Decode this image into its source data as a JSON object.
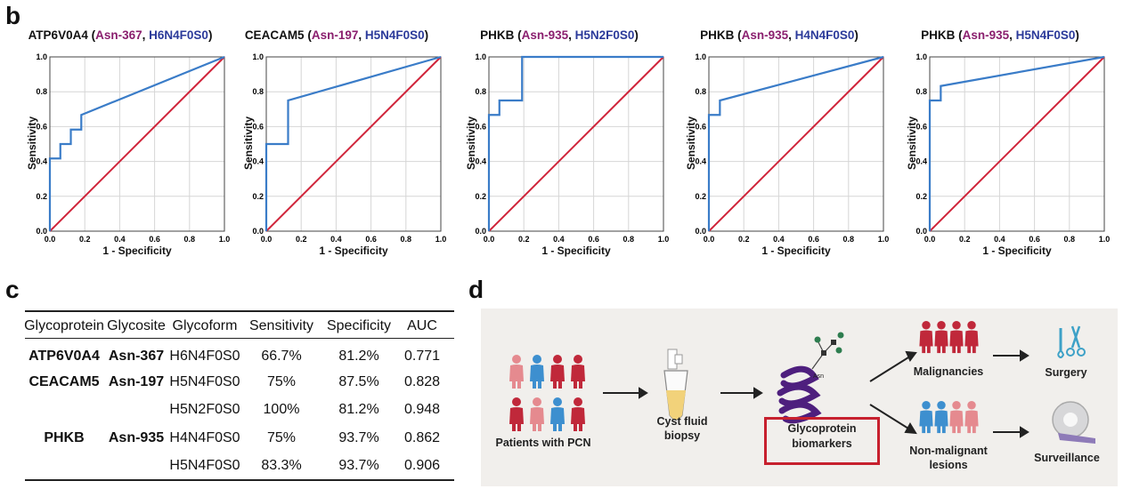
{
  "panels": {
    "b": "b",
    "c": "c",
    "d": "d"
  },
  "roc_common": {
    "ylabel": "Sensitivity",
    "xlabel": "1 - Specificity",
    "ticks": [
      "0.0",
      "0.2",
      "0.4",
      "0.6",
      "0.8",
      "1.0"
    ],
    "diagonal_color": "#d0243a",
    "curve_color": "#3a7cc8"
  },
  "chart_data": [
    {
      "type": "line",
      "title_protein": "ATP6V0A4",
      "title_open": " (",
      "title_site": "Asn-367",
      "title_sep": ", ",
      "title_form": "H6N4F0S0",
      "title_close": ")",
      "xlabel": "1 - Specificity",
      "ylabel": "Sensitivity",
      "xlim": [
        0,
        1
      ],
      "ylim": [
        0,
        1
      ],
      "grid": true,
      "series": [
        {
          "x": [
            0,
            0,
            0.06,
            0.06,
            0.12,
            0.12,
            0.18,
            0.18,
            1.0
          ],
          "y": [
            0,
            0.417,
            0.417,
            0.5,
            0.5,
            0.583,
            0.583,
            0.667,
            1.0
          ]
        }
      ]
    },
    {
      "type": "line",
      "title_protein": "CEACAM5",
      "title_open": " (",
      "title_site": "Asn-197",
      "title_sep": ", ",
      "title_form": "H5N4F0S0",
      "title_close": ")",
      "xlabel": "1 - Specificity",
      "ylabel": "Sensitivity",
      "xlim": [
        0,
        1
      ],
      "ylim": [
        0,
        1
      ],
      "grid": true,
      "series": [
        {
          "x": [
            0,
            0,
            0.125,
            0.125,
            1.0
          ],
          "y": [
            0,
            0.5,
            0.5,
            0.75,
            1.0
          ]
        }
      ]
    },
    {
      "type": "line",
      "title_protein": "PHKB",
      "title_open": " (",
      "title_site": "Asn-935",
      "title_sep": ", ",
      "title_form": "H5N2F0S0",
      "title_close": ")",
      "xlabel": "1 - Specificity",
      "ylabel": "Sensitivity",
      "xlim": [
        0,
        1
      ],
      "ylim": [
        0,
        1
      ],
      "grid": true,
      "series": [
        {
          "x": [
            0,
            0,
            0.06,
            0.06,
            0.19,
            0.19,
            1.0
          ],
          "y": [
            0,
            0.667,
            0.667,
            0.75,
            0.75,
            1.0,
            1.0
          ]
        }
      ]
    },
    {
      "type": "line",
      "title_protein": "PHKB",
      "title_open": " (",
      "title_site": "Asn-935",
      "title_sep": ", ",
      "title_form": "H4N4F0S0",
      "title_close": ")",
      "xlabel": "1 - Specificity",
      "ylabel": "Sensitivity",
      "xlim": [
        0,
        1
      ],
      "ylim": [
        0,
        1
      ],
      "grid": true,
      "series": [
        {
          "x": [
            0,
            0,
            0.063,
            0.063,
            1.0
          ],
          "y": [
            0,
            0.667,
            0.667,
            0.75,
            1.0
          ]
        }
      ]
    },
    {
      "type": "line",
      "title_protein": "PHKB",
      "title_open": " (",
      "title_site": "Asn-935",
      "title_sep": ", ",
      "title_form": "H5N4F0S0",
      "title_close": ")",
      "xlabel": "1 - Specificity",
      "ylabel": "Sensitivity",
      "xlim": [
        0,
        1
      ],
      "ylim": [
        0,
        1
      ],
      "grid": true,
      "series": [
        {
          "x": [
            0,
            0,
            0.063,
            0.063,
            1.0
          ],
          "y": [
            0,
            0.75,
            0.75,
            0.833,
            1.0
          ]
        }
      ]
    }
  ],
  "table": {
    "headers": [
      "Glycoprotein",
      "Glycosite",
      "Glycoform",
      "Sensitivity",
      "Specificity",
      "AUC"
    ],
    "rows": [
      [
        "ATP6V0A4",
        "Asn-367",
        "H6N4F0S0",
        "66.7%",
        "81.2%",
        "0.771"
      ],
      [
        "CEACAM5",
        "Asn-197",
        "H5N4F0S0",
        "75%",
        "87.5%",
        "0.828"
      ],
      [
        "",
        "",
        "H5N2F0S0",
        "100%",
        "81.2%",
        "0.948"
      ],
      [
        "PHKB",
        "Asn-935",
        "H4N4F0S0",
        "75%",
        "93.7%",
        "0.862"
      ],
      [
        "",
        "",
        "H5N4F0S0",
        "83.3%",
        "93.7%",
        "0.906"
      ]
    ]
  },
  "diagram": {
    "patients": "Patients with PCN",
    "biopsy_1": "Cyst fluid",
    "biopsy_2": "biopsy",
    "bio_1": "Glycoprotein",
    "bio_2": "biomarkers",
    "asn": "Asn",
    "malig": "Malignancies",
    "surgery": "Surgery",
    "nonmal_1": "Non-malignant",
    "nonmal_2": "lesions",
    "surveil": "Surveillance",
    "colors": {
      "red": "#c0283a",
      "pink": "#e58a8f",
      "blue": "#3d8fcf",
      "purple": "#5a2a86",
      "box": "#c7202e"
    }
  }
}
